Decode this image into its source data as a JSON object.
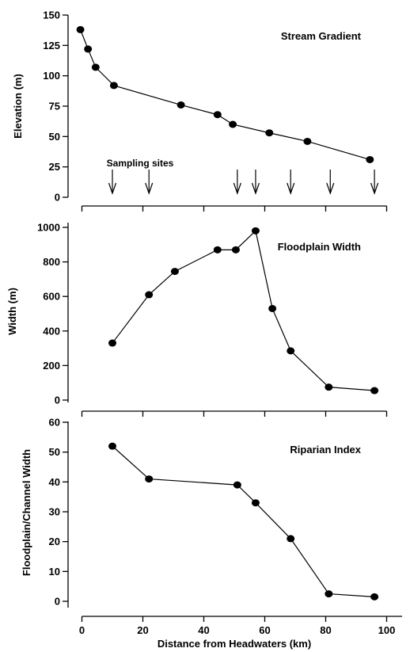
{
  "chart_data": [
    {
      "type": "line",
      "title": "Stream Gradient",
      "xlabel": "",
      "ylabel": "Elevation (m)",
      "xlim": [
        -5,
        100
      ],
      "ylim": [
        0,
        150
      ],
      "yticks": [
        0,
        25,
        50,
        75,
        100,
        125,
        150
      ],
      "xticks": [
        0,
        20,
        40,
        60,
        80,
        100
      ],
      "show_xtick_labels": false,
      "grid": false,
      "x": [
        -0.5,
        2,
        4.5,
        10.5,
        32.5,
        44.5,
        49.5,
        61.5,
        74,
        94.5
      ],
      "y": [
        138,
        122,
        107,
        92,
        76,
        68,
        60,
        53,
        46,
        31
      ],
      "annotation": "Sampling sites",
      "sampling_sites": [
        10,
        22,
        51,
        57,
        68.5,
        81.5,
        96
      ]
    },
    {
      "type": "line",
      "title": "Floodplain Width",
      "xlabel": "",
      "ylabel": "Width (m)",
      "xlim": [
        -5,
        100
      ],
      "ylim": [
        0,
        1050
      ],
      "yticks": [
        0,
        200,
        400,
        600,
        800,
        1000
      ],
      "xticks": [
        0,
        20,
        40,
        60,
        80,
        100
      ],
      "show_xtick_labels": false,
      "grid": false,
      "x": [
        10,
        22,
        30.5,
        44.5,
        50.5,
        57,
        62.5,
        68.5,
        81,
        96
      ],
      "y": [
        330,
        610,
        745,
        870,
        870,
        980,
        530,
        285,
        75,
        55
      ]
    },
    {
      "type": "line",
      "title": "Riparian Index",
      "xlabel": "Distance from Headwaters (km)",
      "ylabel": "Floodplain/Channel Width",
      "xlim": [
        -5,
        100
      ],
      "ylim": [
        -10,
        60
      ],
      "yticks": [
        0,
        10,
        20,
        30,
        40,
        50,
        60
      ],
      "xticks": [
        0,
        20,
        40,
        60,
        80,
        100
      ],
      "show_xtick_labels": true,
      "grid": false,
      "x": [
        10,
        22,
        51,
        57,
        68.5,
        81,
        96
      ],
      "y": [
        52,
        41,
        39,
        33,
        21,
        2.5,
        1.5
      ]
    }
  ]
}
